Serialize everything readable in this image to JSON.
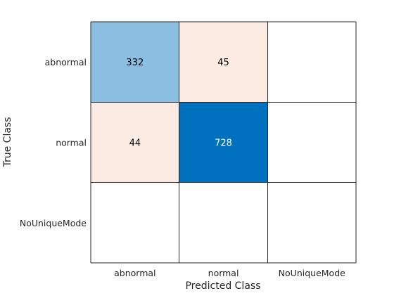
{
  "chart_data": {
    "type": "heatmap",
    "chart_kind": "confusion-matrix",
    "row_labels": [
      "abnormal",
      "normal",
      "NoUniqueMode"
    ],
    "column_labels": [
      "abnormal",
      "normal",
      "NoUniqueMode"
    ],
    "values": [
      [
        332,
        45,
        null
      ],
      [
        44,
        728,
        null
      ],
      [
        null,
        null,
        null
      ]
    ],
    "xlabel": "Predicted Class",
    "ylabel": "True Class",
    "colors": {
      "diagonal_max": "#0072bd",
      "diagonal_min": "#ffffff",
      "off_diagonal_max": "#d95319",
      "off_diagonal_mid_tint": "#fbebe3",
      "grid_line": "#262626",
      "text_dark": "#000000",
      "text_light": "#ffffff",
      "empty_cell": "#ffffff"
    }
  }
}
